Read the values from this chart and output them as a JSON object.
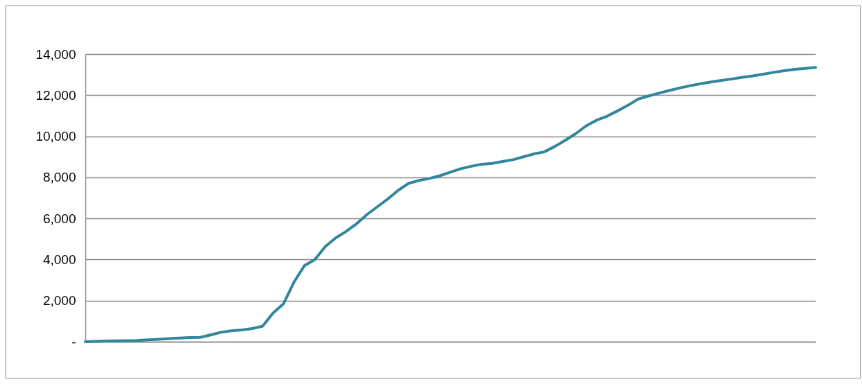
{
  "chart_data": {
    "type": "line",
    "categories": [
      null,
      null,
      null,
      null,
      null,
      null,
      null,
      null,
      null,
      null,
      null,
      null,
      null,
      null,
      null,
      null,
      null,
      null,
      null,
      null,
      null,
      null,
      null,
      null,
      null,
      null,
      null,
      null,
      null,
      null,
      null,
      null,
      null,
      null,
      null,
      null,
      null,
      null,
      null,
      null,
      null,
      null,
      null,
      null,
      null,
      null,
      null,
      null,
      null,
      null,
      null,
      null,
      null,
      null,
      null,
      null,
      null,
      null,
      null,
      null,
      null,
      null,
      null,
      null,
      null,
      null,
      null,
      null,
      null,
      null,
      null
    ],
    "series": [
      {
        "color": "#31859c",
        "values": [
          0,
          20,
          30,
          40,
          50,
          60,
          90,
          120,
          150,
          180,
          200,
          210,
          330,
          460,
          530,
          570,
          640,
          760,
          1400,
          1850,
          2900,
          3700,
          4000,
          4630,
          5050,
          5370,
          5740,
          6190,
          6570,
          6950,
          7370,
          7710,
          7850,
          7950,
          8080,
          8250,
          8420,
          8540,
          8640,
          8680,
          8770,
          8860,
          9000,
          9140,
          9240,
          9500,
          9800,
          10120,
          10500,
          10780,
          10970,
          11230,
          11500,
          11810,
          11960,
          12100,
          12230,
          12350,
          12460,
          12560,
          12640,
          12720,
          12790,
          12870,
          12940,
          13020,
          13110,
          13190,
          13260,
          13300,
          13350
        ]
      }
    ],
    "ylim": [
      0,
      14000
    ],
    "yticks": [
      {
        "value": 0,
        "label": "-"
      },
      {
        "value": 2000,
        "label": "2,000"
      },
      {
        "value": 4000,
        "label": "4,000"
      },
      {
        "value": 6000,
        "label": "6,000"
      },
      {
        "value": 8000,
        "label": "8,000"
      },
      {
        "value": 10000,
        "label": "10,000"
      },
      {
        "value": 12000,
        "label": "12,000"
      },
      {
        "value": 14000,
        "label": "14,000"
      }
    ],
    "grid": "y",
    "tick_labels": "y",
    "line_style": "solid",
    "marker": "none"
  }
}
